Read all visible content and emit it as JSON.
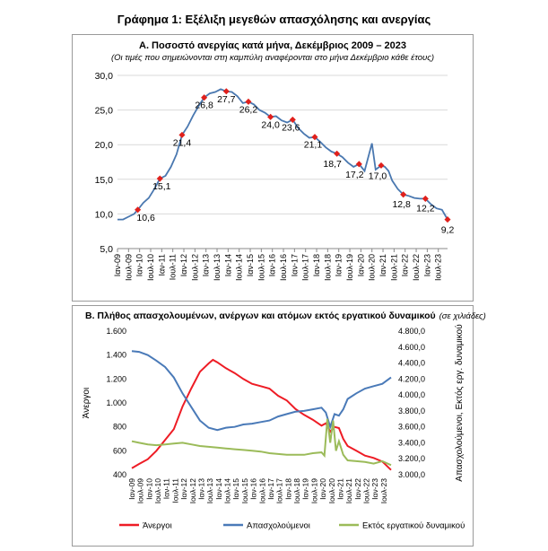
{
  "page_title": "Γράφημα 1: Εξέλιξη μεγεθών απασχόλησης και ανεργίας",
  "panel_a": {
    "title": "Α. Ποσοστό ανεργίας κατά μήνα, Δεκέμβριος 2009 – 2023",
    "subtitle": "(Οι τιμές που σημειώνονται στη καμπύλη αναφέρονται στο μήνα Δεκέμβριο κάθε έτους)"
  },
  "panel_b": {
    "title": "Β. Πλήθος απασχολουμένων, ανέργων και ατόμων εκτός εργατικού δυναμικού",
    "unit_note": "(σε χιλιάδες)"
  },
  "x_tick_labels": [
    "Ιαν-09",
    "Ιουλ-09",
    "Ιαν-10",
    "Ιουλ-10",
    "Ιαν-11",
    "Ιουλ-11",
    "Ιαν-12",
    "Ιουλ-12",
    "Ιαν-13",
    "Ιουλ-13",
    "Ιαν-14",
    "Ιουλ-14",
    "Ιαν-15",
    "Ιουλ-15",
    "Ιαν-16",
    "Ιουλ-16",
    "Ιαν-17",
    "Ιουλ-17",
    "Ιαν-18",
    "Ιουλ-18",
    "Ιαν-19",
    "Ιουλ-19",
    "Ιαν-20",
    "Ιουλ-20",
    "Ιαν-21",
    "Ιουλ-21",
    "Ιαν-22",
    "Ιουλ-22",
    "Ιαν-23",
    "Ιουλ-23"
  ],
  "colors": {
    "rate_line": "#4a78b0",
    "dec_marker": "#e0201c",
    "unemployed": "#ee1c25",
    "employed": "#4a7ab8",
    "inactive": "#9bbb59",
    "grid": "#d9d9d9"
  },
  "chart_data": [
    {
      "type": "line",
      "title": "Α. Ποσοστό ανεργίας κατά μήνα, Δεκέμβριος 2009 – 2023",
      "x_labels_ref": "x_tick_labels",
      "ylim": [
        5,
        30
      ],
      "yticks": [
        "5,0",
        "10,0",
        "15,0",
        "20,0",
        "25,0",
        "30,0"
      ],
      "grid": true,
      "series": [
        {
          "points": [
            [
              "2009-01",
              9.2
            ],
            [
              "2009-04",
              9.2
            ],
            [
              "2009-07",
              9.6
            ],
            [
              "2009-10",
              10.0
            ],
            [
              "2009-12",
              10.6
            ],
            [
              "2010-03",
              11.6
            ],
            [
              "2010-06",
              12.3
            ],
            [
              "2010-09",
              13.6
            ],
            [
              "2010-12",
              15.1
            ],
            [
              "2011-03",
              15.5
            ],
            [
              "2011-06",
              16.8
            ],
            [
              "2011-09",
              18.6
            ],
            [
              "2011-12",
              21.4
            ],
            [
              "2012-03",
              22.6
            ],
            [
              "2012-06",
              24.2
            ],
            [
              "2012-09",
              25.6
            ],
            [
              "2012-12",
              26.8
            ],
            [
              "2013-03",
              27.4
            ],
            [
              "2013-06",
              27.6
            ],
            [
              "2013-09",
              28.0
            ],
            [
              "2013-12",
              27.7
            ],
            [
              "2014-03",
              27.6
            ],
            [
              "2014-06",
              27.0
            ],
            [
              "2014-09",
              26.0
            ],
            [
              "2014-12",
              26.2
            ],
            [
              "2015-03",
              25.8
            ],
            [
              "2015-06",
              25.0
            ],
            [
              "2015-09",
              24.6
            ],
            [
              "2015-12",
              24.0
            ],
            [
              "2016-03",
              24.1
            ],
            [
              "2016-06",
              23.5
            ],
            [
              "2016-09",
              23.2
            ],
            [
              "2016-12",
              23.6
            ],
            [
              "2017-03",
              22.4
            ],
            [
              "2017-06",
              21.6
            ],
            [
              "2017-09",
              21.0
            ],
            [
              "2017-12",
              21.1
            ],
            [
              "2018-03",
              20.4
            ],
            [
              "2018-06",
              19.6
            ],
            [
              "2018-09",
              19.0
            ],
            [
              "2018-12",
              18.7
            ],
            [
              "2019-03",
              18.2
            ],
            [
              "2019-06",
              17.4
            ],
            [
              "2019-09",
              16.8
            ],
            [
              "2019-12",
              17.2
            ],
            [
              "2020-03",
              16.2
            ],
            [
              "2020-05",
              18.2
            ],
            [
              "2020-07",
              20.2
            ],
            [
              "2020-09",
              16.4
            ],
            [
              "2020-12",
              17.0
            ],
            [
              "2021-02",
              16.8
            ],
            [
              "2021-04",
              16.2
            ],
            [
              "2021-06",
              14.8
            ],
            [
              "2021-09",
              13.6
            ],
            [
              "2021-12",
              12.8
            ],
            [
              "2022-03",
              12.6
            ],
            [
              "2022-06",
              12.3
            ],
            [
              "2022-09",
              12.2
            ],
            [
              "2022-12",
              12.2
            ],
            [
              "2023-03",
              11.4
            ],
            [
              "2023-06",
              10.8
            ],
            [
              "2023-09",
              10.6
            ],
            [
              "2023-12",
              9.2
            ]
          ]
        }
      ],
      "annotations": [
        {
          "date": "2009-12",
          "value": 10.6,
          "label": "10,6"
        },
        {
          "date": "2010-12",
          "value": 15.1,
          "label": "15,1"
        },
        {
          "date": "2011-12",
          "value": 21.4,
          "label": "21,4"
        },
        {
          "date": "2012-12",
          "value": 26.8,
          "label": "26,8"
        },
        {
          "date": "2013-12",
          "value": 27.7,
          "label": "27,7"
        },
        {
          "date": "2014-12",
          "value": 26.2,
          "label": "26,2"
        },
        {
          "date": "2015-12",
          "value": 24.0,
          "label": "24,0"
        },
        {
          "date": "2016-12",
          "value": 23.6,
          "label": "23,6"
        },
        {
          "date": "2017-12",
          "value": 21.1,
          "label": "21,1"
        },
        {
          "date": "2018-12",
          "value": 18.7,
          "label": "18,7"
        },
        {
          "date": "2019-12",
          "value": 17.2,
          "label": "17,2"
        },
        {
          "date": "2020-12",
          "value": 17.0,
          "label": "17,0"
        },
        {
          "date": "2021-12",
          "value": 12.8,
          "label": "12,8"
        },
        {
          "date": "2022-12",
          "value": 12.2,
          "label": "12,2"
        },
        {
          "date": "2023-12",
          "value": 9.2,
          "label": "9,2"
        }
      ]
    },
    {
      "type": "line",
      "title": "Β. Πλήθος απασχολουμένων, ανέργων και ατόμων εκτός εργατικού δυναμικού",
      "x_labels_ref": "x_tick_labels",
      "y_left": {
        "label": "Άνεργοι",
        "ylim": [
          400,
          1600
        ],
        "ticks": [
          "400",
          "600",
          "800",
          "1.000",
          "1.200",
          "1.400",
          "1.600"
        ]
      },
      "y_right": {
        "label": "Απασχολούμενοι, Εκτός εργ. δυναμικού",
        "ylim": [
          3000,
          4800
        ],
        "ticks": [
          "3.000,0",
          "3.200,0",
          "3.400,0",
          "3.600,0",
          "3.800,0",
          "4.000,0",
          "4.200,0",
          "4.400,0",
          "4.600,0",
          "4.800,0"
        ]
      },
      "legend_position": "bottom",
      "series": [
        {
          "name": "Άνεργοι",
          "axis": "left",
          "points": [
            [
              "2009-01",
              455
            ],
            [
              "2009-06",
              490
            ],
            [
              "2009-12",
              530
            ],
            [
              "2010-06",
              600
            ],
            [
              "2010-12",
              690
            ],
            [
              "2011-06",
              780
            ],
            [
              "2011-12",
              970
            ],
            [
              "2012-06",
              1120
            ],
            [
              "2012-12",
              1260
            ],
            [
              "2013-06",
              1330
            ],
            [
              "2013-09",
              1360
            ],
            [
              "2013-12",
              1340
            ],
            [
              "2014-06",
              1290
            ],
            [
              "2014-12",
              1250
            ],
            [
              "2015-06",
              1200
            ],
            [
              "2015-12",
              1160
            ],
            [
              "2016-06",
              1140
            ],
            [
              "2016-12",
              1120
            ],
            [
              "2017-06",
              1060
            ],
            [
              "2017-12",
              1020
            ],
            [
              "2018-06",
              950
            ],
            [
              "2018-12",
              900
            ],
            [
              "2019-06",
              860
            ],
            [
              "2019-12",
              810
            ],
            [
              "2020-03",
              830
            ],
            [
              "2020-06",
              760
            ],
            [
              "2020-09",
              800
            ],
            [
              "2020-12",
              790
            ],
            [
              "2021-03",
              700
            ],
            [
              "2021-06",
              640
            ],
            [
              "2021-12",
              600
            ],
            [
              "2022-06",
              560
            ],
            [
              "2022-12",
              540
            ],
            [
              "2023-06",
              510
            ],
            [
              "2023-12",
              440
            ]
          ]
        },
        {
          "name": "Απασχολούμενοι",
          "axis": "right",
          "points": [
            [
              "2009-01",
              4550
            ],
            [
              "2009-06",
              4540
            ],
            [
              "2009-12",
              4500
            ],
            [
              "2010-06",
              4430
            ],
            [
              "2010-12",
              4350
            ],
            [
              "2011-06",
              4220
            ],
            [
              "2011-12",
              4020
            ],
            [
              "2012-06",
              3850
            ],
            [
              "2012-12",
              3680
            ],
            [
              "2013-06",
              3590
            ],
            [
              "2013-12",
              3560
            ],
            [
              "2014-06",
              3590
            ],
            [
              "2014-12",
              3600
            ],
            [
              "2015-06",
              3630
            ],
            [
              "2015-12",
              3640
            ],
            [
              "2016-06",
              3660
            ],
            [
              "2016-12",
              3680
            ],
            [
              "2017-06",
              3730
            ],
            [
              "2017-12",
              3760
            ],
            [
              "2018-06",
              3790
            ],
            [
              "2018-12",
              3800
            ],
            [
              "2019-06",
              3820
            ],
            [
              "2019-12",
              3840
            ],
            [
              "2020-03",
              3780
            ],
            [
              "2020-06",
              3600
            ],
            [
              "2020-09",
              3760
            ],
            [
              "2020-12",
              3740
            ],
            [
              "2021-03",
              3820
            ],
            [
              "2021-06",
              3950
            ],
            [
              "2021-12",
              4020
            ],
            [
              "2022-06",
              4080
            ],
            [
              "2022-12",
              4110
            ],
            [
              "2023-06",
              4140
            ],
            [
              "2023-12",
              4220
            ]
          ]
        },
        {
          "name": "Εκτός εργατικού δυναμικού",
          "axis": "right",
          "points": [
            [
              "2009-01",
              3420
            ],
            [
              "2009-06",
              3400
            ],
            [
              "2009-12",
              3380
            ],
            [
              "2010-06",
              3370
            ],
            [
              "2010-12",
              3380
            ],
            [
              "2011-06",
              3390
            ],
            [
              "2011-12",
              3400
            ],
            [
              "2012-06",
              3380
            ],
            [
              "2012-12",
              3360
            ],
            [
              "2013-06",
              3350
            ],
            [
              "2013-12",
              3340
            ],
            [
              "2014-06",
              3330
            ],
            [
              "2014-12",
              3320
            ],
            [
              "2015-06",
              3310
            ],
            [
              "2015-12",
              3300
            ],
            [
              "2016-06",
              3290
            ],
            [
              "2016-12",
              3270
            ],
            [
              "2017-06",
              3260
            ],
            [
              "2017-12",
              3250
            ],
            [
              "2018-06",
              3250
            ],
            [
              "2018-12",
              3250
            ],
            [
              "2019-06",
              3270
            ],
            [
              "2019-12",
              3280
            ],
            [
              "2020-02",
              3240
            ],
            [
              "2020-04",
              3700
            ],
            [
              "2020-06",
              3400
            ],
            [
              "2020-08",
              3680
            ],
            [
              "2020-10",
              3300
            ],
            [
              "2020-12",
              3420
            ],
            [
              "2021-03",
              3250
            ],
            [
              "2021-06",
              3180
            ],
            [
              "2021-12",
              3170
            ],
            [
              "2022-06",
              3160
            ],
            [
              "2022-12",
              3140
            ],
            [
              "2023-06",
              3170
            ],
            [
              "2023-12",
              3120
            ]
          ]
        }
      ]
    }
  ]
}
